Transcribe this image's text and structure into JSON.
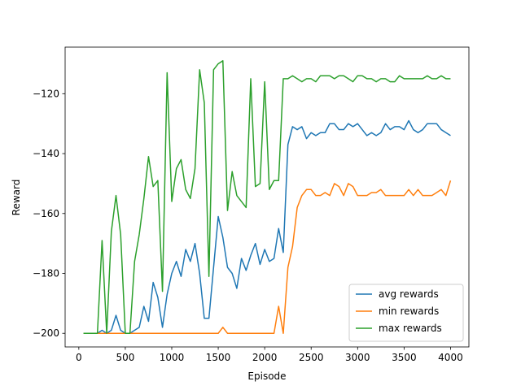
{
  "chart_data": {
    "type": "line",
    "xlabel": "Episode",
    "ylabel": "Reward",
    "x": [
      50,
      100,
      150,
      200,
      250,
      300,
      350,
      400,
      450,
      500,
      550,
      600,
      650,
      700,
      750,
      800,
      850,
      900,
      950,
      1000,
      1050,
      1100,
      1150,
      1200,
      1250,
      1300,
      1350,
      1400,
      1450,
      1500,
      1550,
      1600,
      1650,
      1700,
      1750,
      1800,
      1850,
      1900,
      1950,
      2000,
      2050,
      2100,
      2150,
      2200,
      2250,
      2300,
      2350,
      2400,
      2450,
      2500,
      2550,
      2600,
      2650,
      2700,
      2750,
      2800,
      2850,
      2900,
      2950,
      3000,
      3050,
      3100,
      3150,
      3200,
      3250,
      3300,
      3350,
      3400,
      3450,
      3500,
      3550,
      3600,
      3650,
      3700,
      3750,
      3800,
      3850,
      3900,
      3950,
      4000
    ],
    "series": [
      {
        "name": "avg rewards",
        "color": "#1f77b4",
        "values": [
          -200,
          -200,
          -200,
          -200,
          -199,
          -200,
          -199,
          -194,
          -199,
          -200,
          -200,
          -199,
          -198,
          -191,
          -196,
          -183,
          -188,
          -198,
          -187,
          -180,
          -176,
          -181,
          -172,
          -176,
          -170,
          -180,
          -195,
          -195,
          -178,
          -161,
          -168,
          -178,
          -180,
          -185,
          -175,
          -179,
          -174,
          -170,
          -177,
          -172,
          -176,
          -175,
          -165,
          -173,
          -137,
          -131,
          -132,
          -131,
          -135,
          -133,
          -134,
          -133,
          -133,
          -130,
          -130,
          -132,
          -132,
          -130,
          -131,
          -130,
          -132,
          -134,
          -133,
          -134,
          -133,
          -130,
          -132,
          -131,
          -131,
          -132,
          -129,
          -132,
          -133,
          -132,
          -130,
          -130,
          -130,
          -132,
          -133,
          -134
        ]
      },
      {
        "name": "min rewards",
        "color": "#ff7f0e",
        "values": [
          -200,
          -200,
          -200,
          -200,
          -200,
          -200,
          -200,
          -200,
          -200,
          -200,
          -200,
          -200,
          -200,
          -200,
          -200,
          -200,
          -200,
          -200,
          -200,
          -200,
          -200,
          -200,
          -200,
          -200,
          -200,
          -200,
          -200,
          -200,
          -200,
          -200,
          -198,
          -200,
          -200,
          -200,
          -200,
          -200,
          -200,
          -200,
          -200,
          -200,
          -200,
          -200,
          -191,
          -200,
          -178,
          -171,
          -158,
          -154,
          -152,
          -152,
          -154,
          -154,
          -153,
          -154,
          -150,
          -151,
          -154,
          -150,
          -151,
          -154,
          -154,
          -154,
          -153,
          -153,
          -152,
          -154,
          -154,
          -154,
          -154,
          -154,
          -152,
          -154,
          -152,
          -154,
          -154,
          -154,
          -153,
          -152,
          -154,
          -149
        ]
      },
      {
        "name": "max rewards",
        "color": "#2ca02c",
        "values": [
          -200,
          -200,
          -200,
          -200,
          -169,
          -200,
          -166,
          -154,
          -167,
          -200,
          -200,
          -176,
          -167,
          -155,
          -141,
          -151,
          -149,
          -186,
          -113,
          -156,
          -145,
          -142,
          -152,
          -155,
          -145,
          -112,
          -123,
          -181,
          -112,
          -110,
          -109,
          -159,
          -146,
          -154,
          -156,
          -158,
          -115,
          -151,
          -150,
          -116,
          -152,
          -149,
          -149,
          -115,
          -115,
          -114,
          -115,
          -116,
          -115,
          -115,
          -116,
          -114,
          -114,
          -114,
          -115,
          -114,
          -114,
          -115,
          -116,
          -114,
          -114,
          -115,
          -115,
          -116,
          -115,
          -115,
          -116,
          -116,
          -114,
          -115,
          -115,
          -115,
          -115,
          -115,
          -114,
          -115,
          -115,
          -114,
          -115,
          -115
        ]
      }
    ],
    "xlim": [
      -147.5,
      4197.5
    ],
    "ylim": [
      -204.55,
      -104.45
    ],
    "xticks": [
      0,
      500,
      1000,
      1500,
      2000,
      2500,
      3000,
      3500,
      4000
    ],
    "yticks": [
      {
        "value": -200,
        "label": "−200"
      },
      {
        "value": -180,
        "label": "−180"
      },
      {
        "value": -160,
        "label": "−160"
      },
      {
        "value": -140,
        "label": "−140"
      },
      {
        "value": -120,
        "label": "−120"
      }
    ],
    "legend": "lower right"
  }
}
